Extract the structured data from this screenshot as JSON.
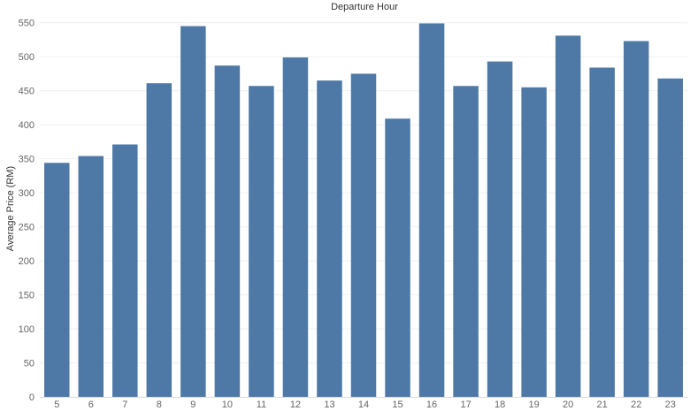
{
  "chart_data": {
    "type": "bar",
    "title": "Departure Hour",
    "xlabel": "",
    "ylabel": "Average Price (RM)",
    "categories": [
      "5",
      "6",
      "7",
      "8",
      "9",
      "10",
      "11",
      "12",
      "13",
      "14",
      "15",
      "16",
      "17",
      "18",
      "19",
      "20",
      "21",
      "22",
      "23"
    ],
    "values": [
      344,
      354,
      371,
      461,
      545,
      487,
      457,
      499,
      465,
      475,
      409,
      549,
      457,
      493,
      455,
      531,
      484,
      523,
      468
    ],
    "y_ticks": [
      "0",
      "50",
      "100",
      "150",
      "200",
      "250",
      "300",
      "350",
      "400",
      "450",
      "500",
      "550"
    ],
    "ylim": [
      0,
      560
    ],
    "grid": true,
    "bar_color": "#4e79a7",
    "gridline_color": "#f0f0f0",
    "axis_color": "#d9d9d9"
  }
}
